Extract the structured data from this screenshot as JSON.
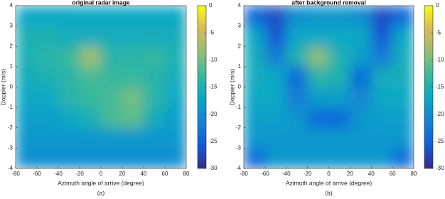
{
  "chart_data": [
    {
      "type": "heatmap",
      "title": "original radar image",
      "x_label": "Azimuth angle of arrive (degree)",
      "y_label": "Doppler (m/s)",
      "caption": "(a)",
      "xbins": [
        -80,
        -60,
        -40,
        -20,
        0,
        20,
        40,
        60,
        80
      ],
      "ybins": [
        -4,
        -3,
        -2,
        -1,
        0,
        1,
        2,
        3,
        4
      ],
      "z": [
        [
          -20,
          -20,
          -20,
          -20,
          -20,
          -20,
          -20,
          -20
        ],
        [
          -19,
          -19,
          -19,
          -19,
          -19,
          -19,
          -19,
          -19
        ],
        [
          -18,
          -18,
          -17,
          -15,
          -12,
          -11,
          -16,
          -18
        ],
        [
          -17,
          -17,
          -14,
          -13,
          -12,
          -10,
          -14,
          -17
        ],
        [
          -16,
          -15,
          -14,
          -12,
          -13,
          -13,
          -14,
          -16
        ],
        [
          -15,
          -14,
          -13,
          -8,
          -14,
          -14,
          -13,
          -15
        ],
        [
          -15,
          -15,
          -16,
          -16,
          -16,
          -16,
          -16,
          -16
        ],
        [
          -17,
          -17,
          -17,
          -17,
          -17,
          -17,
          -17,
          -17
        ]
      ],
      "xlim": [
        -80,
        80
      ],
      "ylim": [
        -4,
        4
      ],
      "xticks": [
        -80,
        -60,
        -40,
        -20,
        0,
        20,
        40,
        60,
        80
      ],
      "yticks": [
        -4,
        -3,
        -2,
        -1,
        0,
        1,
        2,
        3,
        4
      ],
      "clim": [
        -30,
        0
      ],
      "cticks": [
        -30,
        -25,
        -20,
        -15,
        -10,
        -5,
        0
      ],
      "colormap": [
        "#352a87",
        "#0f5cdd",
        "#1481d6",
        "#06a7c6",
        "#38b99e",
        "#92bf73",
        "#d9ba56",
        "#f9fb0e"
      ]
    },
    {
      "type": "heatmap",
      "title": "after background removal",
      "x_label": "Azimuth angle of arrive (degree)",
      "y_label": "Doppler (m/s)",
      "caption": "(b)",
      "xbins": [
        -80,
        -60,
        -40,
        -20,
        0,
        20,
        40,
        60,
        80
      ],
      "ybins": [
        -4,
        -3,
        -2,
        -1,
        0,
        1,
        2,
        3,
        4
      ],
      "z": [
        [
          -24,
          -19,
          -19,
          -19,
          -19,
          -19,
          -19,
          -24
        ],
        [
          -19,
          -19,
          -19,
          -19,
          -19,
          -19,
          -19,
          -19
        ],
        [
          -18,
          -18,
          -19,
          -24,
          -24,
          -19,
          -18,
          -18
        ],
        [
          -17,
          -17,
          -22,
          -18,
          -18,
          -21,
          -17,
          -17
        ],
        [
          -16,
          -17,
          -24,
          -14,
          -15,
          -24,
          -16,
          -16
        ],
        [
          -16,
          -22,
          -15,
          -9,
          -15,
          -18,
          -22,
          -16
        ],
        [
          -17,
          -26,
          -17,
          -17,
          -17,
          -17,
          -26,
          -17
        ],
        [
          -24,
          -27,
          -20,
          -19,
          -19,
          -20,
          -27,
          -24
        ]
      ],
      "xlim": [
        -80,
        80
      ],
      "ylim": [
        -4,
        4
      ],
      "xticks": [
        -80,
        -60,
        -40,
        -20,
        0,
        20,
        40,
        60,
        80
      ],
      "yticks": [
        -4,
        -3,
        -2,
        -1,
        0,
        1,
        2,
        3,
        4
      ],
      "clim": [
        -30,
        0
      ],
      "cticks": [
        -30,
        -25,
        -20,
        -15,
        -10,
        -5,
        0
      ],
      "colormap": [
        "#352a87",
        "#0f5cdd",
        "#1481d6",
        "#06a7c6",
        "#38b99e",
        "#92bf73",
        "#d9ba56",
        "#f9fb0e"
      ]
    }
  ]
}
